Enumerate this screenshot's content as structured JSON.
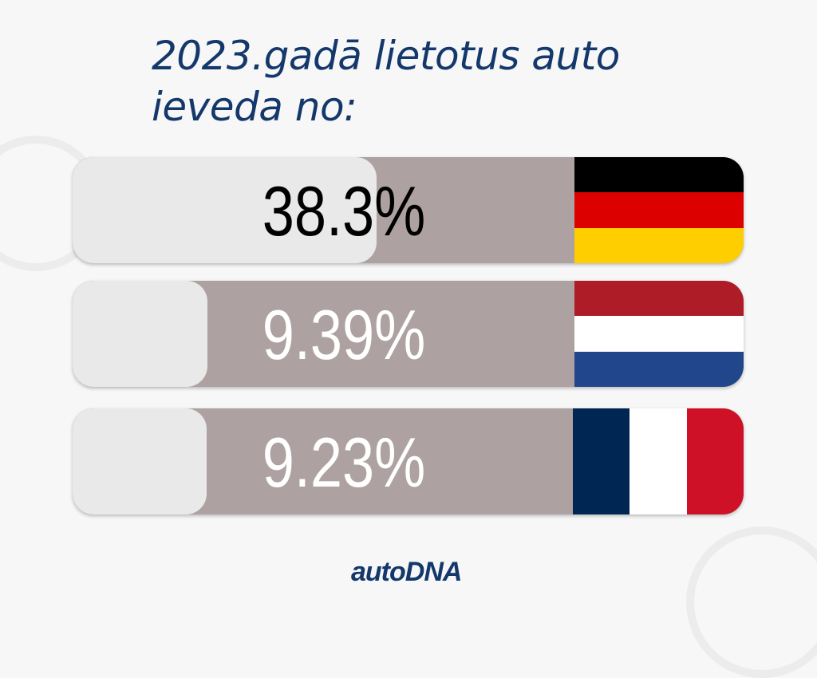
{
  "title_lines": [
    "2023.gadā lietotus auto",
    "ieveda no:"
  ],
  "logo_text": "autoDNA",
  "chart_data": {
    "type": "bar",
    "title": "2023.gadā lietotus auto ieveda no:",
    "categories": [
      "Germany",
      "Netherlands",
      "France"
    ],
    "values": [
      38.3,
      9.39,
      9.23
    ],
    "labels": [
      "38.3%",
      "9.39%",
      "9.23%"
    ],
    "label_colors": [
      "#000000",
      "#ffffff",
      "#ffffff"
    ],
    "flags": [
      {
        "orientation": "horizontal",
        "colors": [
          "#000000",
          "#dd0000",
          "#ffce00"
        ]
      },
      {
        "orientation": "horizontal",
        "colors": [
          "#ae1c28",
          "#ffffff",
          "#21468b"
        ]
      },
      {
        "orientation": "vertical",
        "colors": [
          "#002654",
          "#ffffff",
          "#ce1126"
        ]
      }
    ],
    "colors": {
      "track": "#aea1a1",
      "fill": "#e9e9e9",
      "title": "#14386b"
    }
  }
}
